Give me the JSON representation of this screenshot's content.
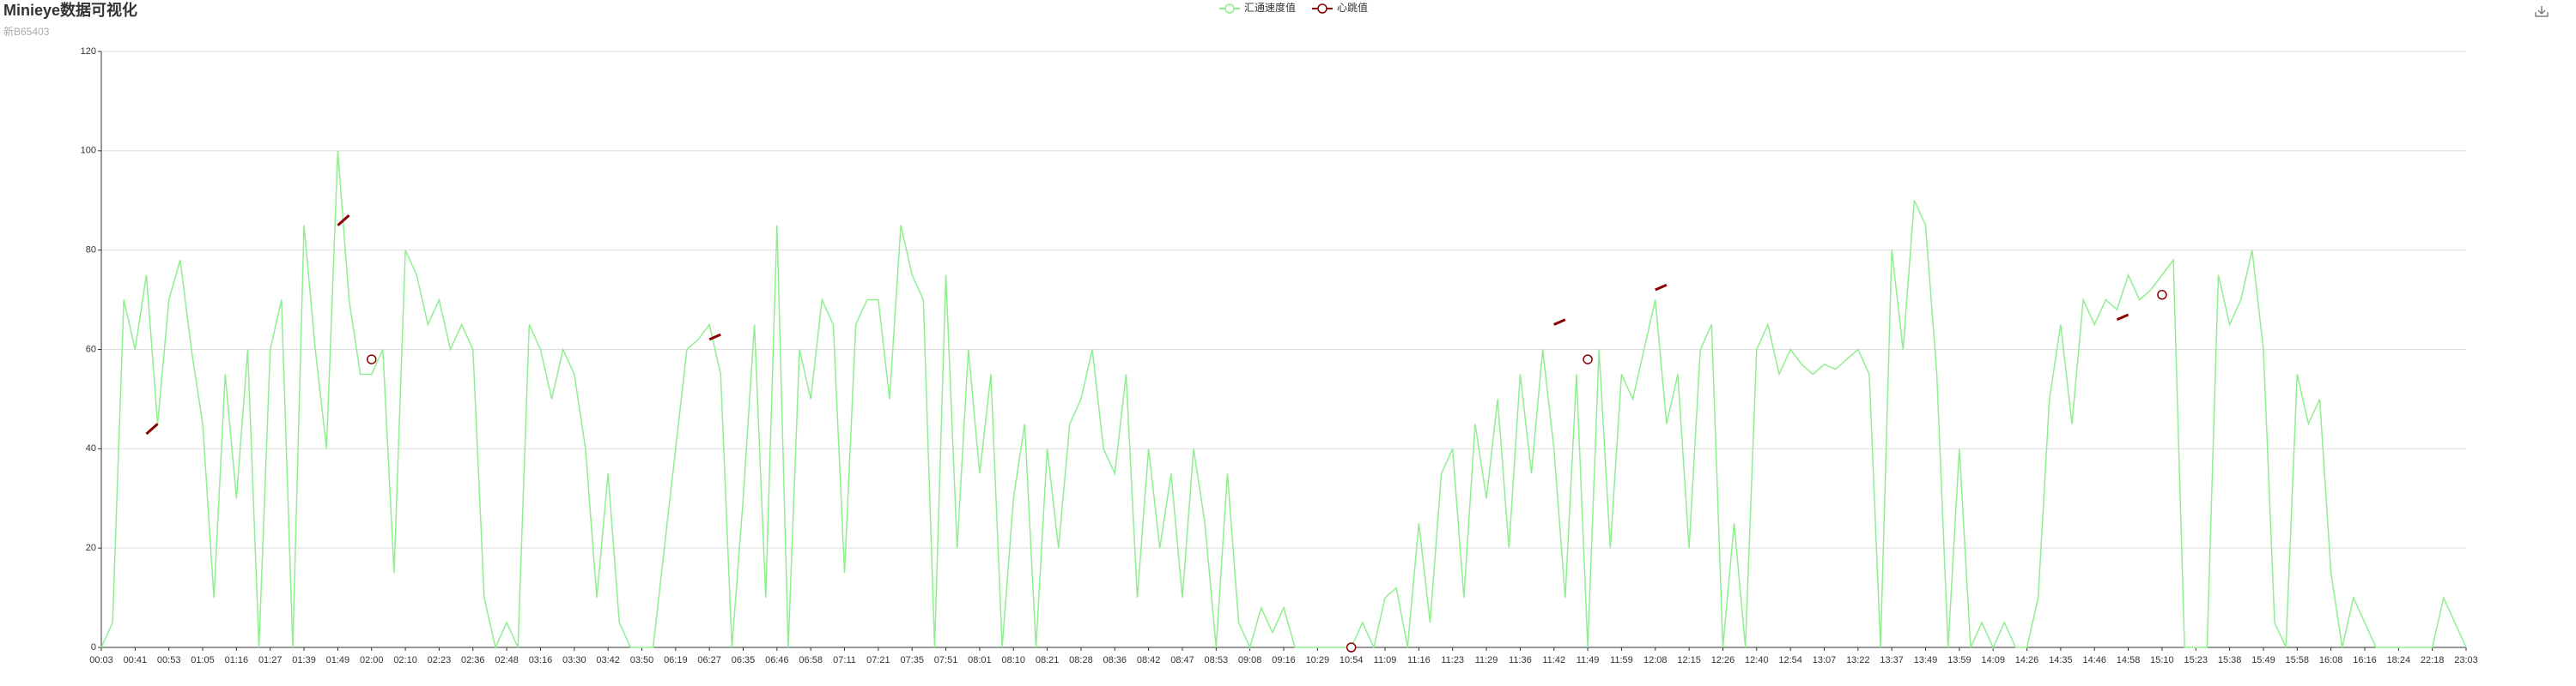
{
  "chart_data": {
    "type": "line",
    "title": "Minieye数据可视化",
    "subtitle": "新B65403",
    "categories": [
      "00:03",
      null,
      null,
      "00:41",
      null,
      null,
      "00:53",
      null,
      null,
      "01:05",
      null,
      null,
      "01:16",
      null,
      null,
      "01:27",
      null,
      null,
      "01:39",
      null,
      null,
      "01:49",
      null,
      null,
      "02:00",
      null,
      null,
      "02:10",
      null,
      null,
      "02:23",
      null,
      null,
      "02:36",
      null,
      null,
      "02:48",
      null,
      null,
      "03:16",
      null,
      null,
      "03:30",
      null,
      null,
      "03:42",
      null,
      null,
      "03:50",
      null,
      null,
      "06:19",
      null,
      null,
      "06:27",
      null,
      null,
      "06:35",
      null,
      null,
      "06:46",
      null,
      null,
      "06:58",
      null,
      null,
      "07:11",
      null,
      null,
      "07:21",
      null,
      null,
      "07:35",
      null,
      null,
      "07:51",
      null,
      null,
      "08:01",
      null,
      null,
      "08:10",
      null,
      null,
      "08:21",
      null,
      null,
      "08:28",
      null,
      null,
      "08:36",
      null,
      null,
      "08:42",
      null,
      null,
      "08:47",
      null,
      null,
      "08:53",
      null,
      null,
      "09:08",
      null,
      null,
      "09:16",
      null,
      null,
      "10:29",
      null,
      null,
      "10:54",
      null,
      null,
      "11:09",
      null,
      null,
      "11:16",
      null,
      null,
      "11:23",
      null,
      null,
      "11:29",
      null,
      null,
      "11:36",
      null,
      null,
      "11:42",
      null,
      null,
      "11:49",
      null,
      null,
      "11:59",
      null,
      null,
      "12:08",
      null,
      null,
      "12:15",
      null,
      null,
      "12:26",
      null,
      null,
      "12:40",
      null,
      null,
      "12:54",
      null,
      null,
      "13:07",
      null,
      null,
      "13:22",
      null,
      null,
      "13:37",
      null,
      null,
      "13:49",
      null,
      null,
      "13:59",
      null,
      null,
      "14:09",
      null,
      null,
      "14:26",
      null,
      null,
      "14:35",
      null,
      null,
      "14:46",
      null,
      null,
      "14:58",
      null,
      null,
      "15:10",
      null,
      null,
      "15:23",
      null,
      null,
      "15:38",
      null,
      null,
      "15:49",
      null,
      null,
      "15:58",
      null,
      null,
      "16:08",
      null,
      null,
      "16:16",
      null,
      null,
      "18:24",
      null,
      null,
      "22:18",
      null,
      null,
      "23:03"
    ],
    "series": [
      {
        "name": "汇通速度值",
        "color": "#90ee90",
        "values": [
          0,
          5,
          70,
          60,
          75,
          45,
          70,
          78,
          60,
          45,
          10,
          55,
          30,
          60,
          0,
          60,
          70,
          0,
          85,
          60,
          40,
          100,
          70,
          55,
          55,
          60,
          15,
          80,
          75,
          65,
          70,
          60,
          65,
          60,
          10,
          0,
          5,
          0,
          65,
          60,
          50,
          60,
          55,
          40,
          10,
          35,
          5,
          0,
          0,
          0,
          20,
          40,
          60,
          62,
          65,
          55,
          0,
          30,
          65,
          10,
          85,
          0,
          60,
          50,
          70,
          65,
          15,
          65,
          70,
          70,
          50,
          85,
          75,
          70,
          0,
          75,
          20,
          60,
          35,
          55,
          0,
          30,
          45,
          0,
          40,
          20,
          45,
          50,
          60,
          40,
          35,
          55,
          10,
          40,
          20,
          35,
          10,
          40,
          25,
          0,
          35,
          5,
          0,
          8,
          3,
          8,
          0,
          0,
          0,
          0,
          0,
          0,
          5,
          0,
          10,
          12,
          0,
          25,
          5,
          35,
          40,
          10,
          45,
          30,
          50,
          20,
          55,
          35,
          60,
          40,
          10,
          55,
          0,
          60,
          20,
          55,
          50,
          60,
          70,
          45,
          55,
          20,
          60,
          65,
          0,
          25,
          0,
          60,
          65,
          55,
          60,
          57,
          55,
          57,
          56,
          58,
          60,
          55,
          0,
          80,
          60,
          90,
          85,
          55,
          0,
          40,
          0,
          5,
          0,
          5,
          0,
          0,
          10,
          50,
          65,
          45,
          70,
          65,
          70,
          68,
          75,
          70,
          72,
          75,
          78,
          0,
          0,
          0,
          75,
          65,
          70,
          80,
          60,
          5,
          0,
          55,
          45,
          50,
          15,
          0,
          10,
          5,
          0,
          0,
          0,
          0,
          0,
          0,
          10,
          5,
          0
        ]
      },
      {
        "name": "心跳值",
        "color": "#8b0000",
        "values": [
          null,
          null,
          null,
          null,
          43,
          45,
          null,
          null,
          null,
          null,
          null,
          null,
          null,
          null,
          null,
          null,
          null,
          null,
          null,
          null,
          null,
          85,
          87,
          null,
          58,
          null,
          null,
          null,
          null,
          null,
          null,
          null,
          null,
          null,
          null,
          null,
          null,
          null,
          null,
          null,
          null,
          null,
          null,
          null,
          null,
          null,
          null,
          null,
          null,
          null,
          null,
          null,
          null,
          null,
          62,
          63,
          null,
          null,
          null,
          null,
          null,
          null,
          null,
          null,
          null,
          null,
          null,
          null,
          null,
          null,
          null,
          null,
          null,
          null,
          null,
          null,
          null,
          null,
          null,
          null,
          null,
          null,
          null,
          null,
          null,
          null,
          null,
          null,
          null,
          null,
          null,
          null,
          null,
          null,
          null,
          null,
          null,
          null,
          null,
          null,
          null,
          null,
          null,
          null,
          null,
          null,
          null,
          null,
          null,
          null,
          null,
          0,
          null,
          null,
          null,
          null,
          null,
          null,
          null,
          null,
          null,
          null,
          null,
          null,
          null,
          null,
          null,
          null,
          null,
          65,
          66,
          null,
          58,
          null,
          null,
          null,
          null,
          null,
          72,
          73,
          null,
          null,
          null,
          null,
          null,
          null,
          null,
          null,
          null,
          null,
          null,
          null,
          null,
          null,
          null,
          null,
          null,
          null,
          null,
          null,
          null,
          null,
          null,
          null,
          null,
          null,
          null,
          null,
          null,
          null,
          null,
          null,
          null,
          null,
          null,
          null,
          null,
          null,
          null,
          66,
          67,
          null,
          null,
          71,
          null,
          null,
          null,
          null,
          null,
          null,
          null,
          null,
          null,
          null,
          null,
          null,
          null,
          null,
          null,
          null,
          null,
          null,
          null,
          null,
          null,
          null,
          null,
          null,
          null,
          null,
          null
        ]
      }
    ],
    "ylim": [
      0,
      120
    ],
    "yticks": [
      0,
      20,
      40,
      60,
      80,
      100,
      120
    ],
    "grid": true
  }
}
